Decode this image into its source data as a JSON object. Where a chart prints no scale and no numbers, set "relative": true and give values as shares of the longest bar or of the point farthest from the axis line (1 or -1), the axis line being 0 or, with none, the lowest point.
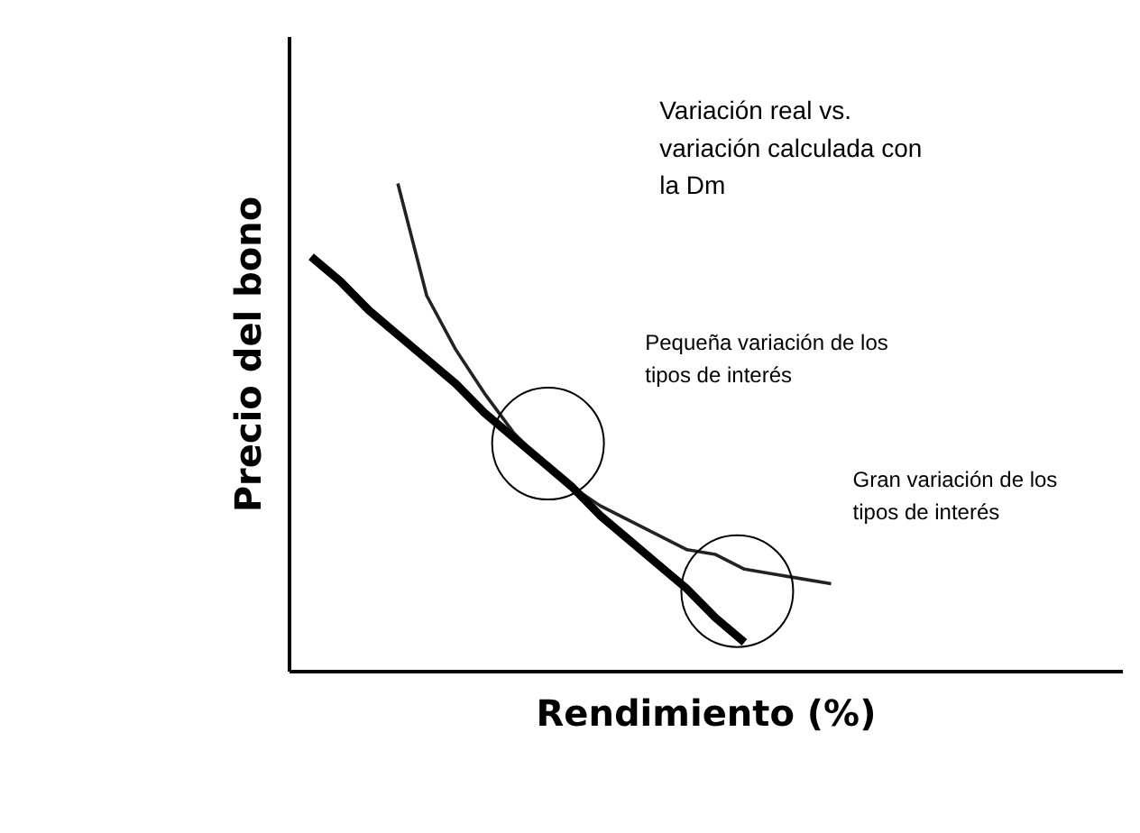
{
  "chart_data": {
    "type": "line",
    "relative": true,
    "xlabel": "Rendimiento (%)",
    "ylabel": "Precio del bono",
    "categories": [
      null,
      null,
      null,
      null,
      null,
      null,
      null,
      null,
      null,
      null,
      null,
      null,
      null,
      null,
      null,
      null,
      null,
      null,
      null
    ],
    "series": [
      {
        "color": "#222222",
        "values": [
          null,
          null,
          null,
          1.0,
          0.77,
          0.66,
          0.57,
          0.49,
          0.43,
          0.38,
          0.34,
          0.31,
          0.28,
          0.25,
          0.24,
          0.21,
          0.2,
          0.19,
          0.18
        ]
      },
      {
        "color": "#000000",
        "values": [
          0.85,
          0.8,
          0.74,
          0.69,
          0.64,
          0.59,
          0.53,
          0.48,
          0.43,
          0.38,
          0.32,
          0.27,
          0.22,
          0.17,
          0.11,
          0.06,
          null,
          null,
          null
        ]
      }
    ],
    "annotations": [
      "Variación real vs.\nvariación calculada con\nla Dm",
      "Pequeña variación de los\ntipos de interés",
      "Gran variación de los\ntipos de interés"
    ],
    "grid": false,
    "marker": "none",
    "line_style": "solid"
  }
}
